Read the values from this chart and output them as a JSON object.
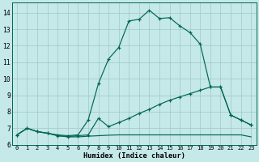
{
  "xlabel": "Humidex (Indice chaleur)",
  "bg_color": "#c5e8e8",
  "grid_color": "#a0c8c8",
  "line_color": "#006655",
  "xlim": [
    -0.5,
    23.5
  ],
  "ylim": [
    6.0,
    14.6
  ],
  "yticks": [
    6,
    7,
    8,
    9,
    10,
    11,
    12,
    13,
    14
  ],
  "xtick_labels": [
    "0",
    "1",
    "2",
    "3",
    "4",
    "5",
    "6",
    "7",
    "8",
    "9",
    "10",
    "11",
    "12",
    "13",
    "14",
    "15",
    "16",
    "17",
    "18",
    "19",
    "20",
    "21",
    "22",
    "23"
  ],
  "line1_x": [
    0,
    1,
    2,
    3,
    4,
    5,
    6,
    7,
    8,
    9,
    10,
    11,
    12,
    13,
    14,
    15,
    16,
    17,
    18,
    19,
    20,
    21,
    22,
    23
  ],
  "line1_y": [
    6.6,
    7.0,
    6.8,
    6.7,
    6.6,
    6.55,
    6.6,
    7.5,
    9.7,
    11.2,
    11.9,
    13.5,
    13.6,
    14.15,
    13.65,
    13.7,
    13.2,
    12.8,
    12.1,
    9.5,
    9.5,
    7.8,
    7.5,
    7.2
  ],
  "line2_x": [
    0,
    1,
    2,
    3,
    4,
    5,
    6,
    7,
    8,
    9,
    10,
    11,
    12,
    13,
    14,
    15,
    16,
    17,
    18,
    19,
    20,
    21,
    22,
    23
  ],
  "line2_y": [
    6.6,
    7.0,
    6.8,
    6.7,
    6.55,
    6.5,
    6.55,
    6.6,
    7.6,
    7.1,
    7.35,
    7.6,
    7.9,
    8.15,
    8.45,
    8.7,
    8.9,
    9.1,
    9.3,
    9.5,
    9.5,
    7.8,
    7.5,
    7.2
  ],
  "line3_x": [
    0,
    1,
    2,
    3,
    4,
    5,
    6,
    7,
    8,
    9,
    10,
    11,
    12,
    13,
    14,
    15,
    16,
    17,
    18,
    19,
    20,
    21,
    22,
    23
  ],
  "line3_y": [
    6.6,
    7.0,
    6.8,
    6.7,
    6.55,
    6.48,
    6.48,
    6.52,
    6.55,
    6.58,
    6.6,
    6.6,
    6.6,
    6.6,
    6.6,
    6.6,
    6.6,
    6.6,
    6.6,
    6.6,
    6.6,
    6.6,
    6.6,
    6.48
  ]
}
